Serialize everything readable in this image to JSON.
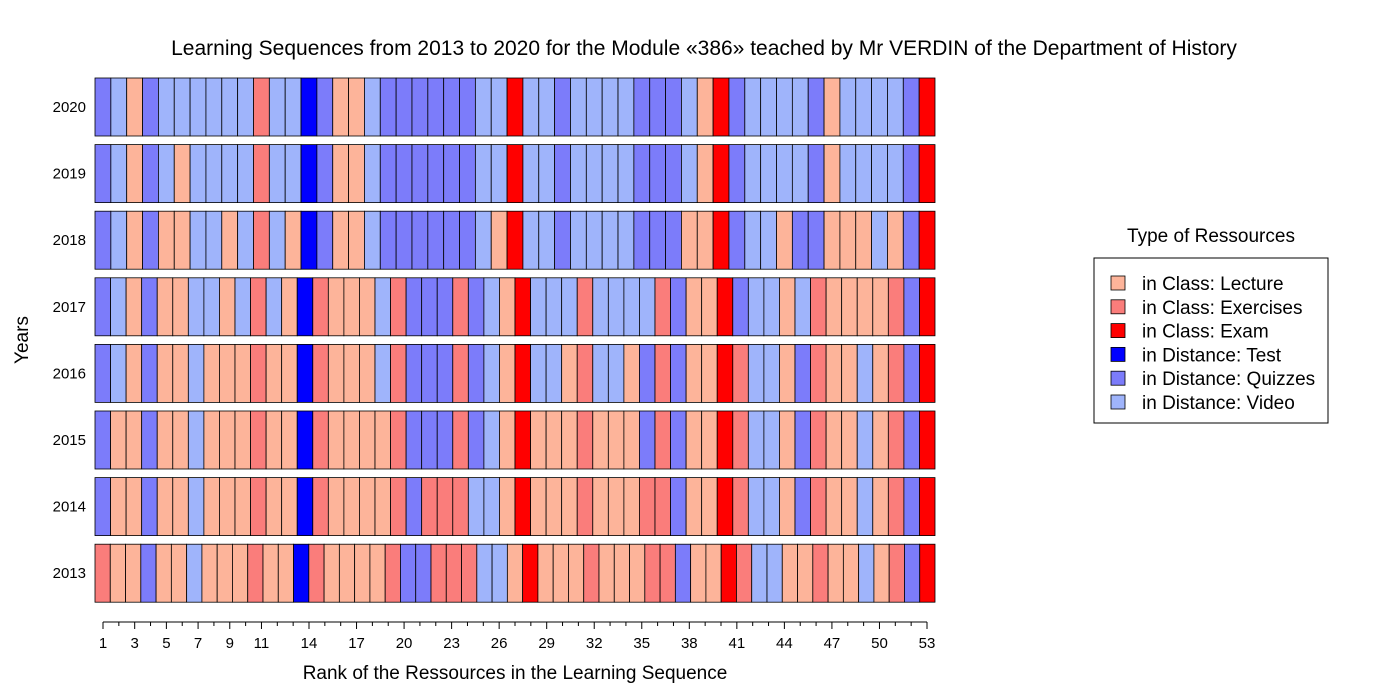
{
  "chart_data": {
    "type": "heatmap",
    "title": "Learning Sequences from 2013 to 2020 for the Module «386» teached by Mr VERDIN of the Department of History",
    "xlabel": "Rank of the Ressources in the Learning Sequence",
    "ylabel": "Years",
    "x_ticks": [
      1,
      3,
      5,
      7,
      9,
      11,
      14,
      17,
      20,
      23,
      26,
      29,
      32,
      35,
      38,
      41,
      44,
      47,
      50,
      53
    ],
    "x_range": [
      1,
      53
    ],
    "years": [
      "2020",
      "2019",
      "2018",
      "2017",
      "2016",
      "2015",
      "2014",
      "2013"
    ],
    "legend": {
      "title": "Type of Ressources",
      "position": "right",
      "items": [
        {
          "code": "L",
          "label": "in Class: Lecture",
          "color": "#FDB49A"
        },
        {
          "code": "X",
          "label": "in Class: Exercises",
          "color": "#FA7D7B"
        },
        {
          "code": "E",
          "label": "in Class: Exam",
          "color": "#FF0000"
        },
        {
          "code": "T",
          "label": "in Distance: Test",
          "color": "#0000FF"
        },
        {
          "code": "Q",
          "label": "in Distance: Quizzes",
          "color": "#7C7CFA"
        },
        {
          "code": "V",
          "label": "in Distance: Video",
          "color": "#9FB4FB"
        }
      ]
    },
    "sequences": {
      "2020": "QVLQVVVVVVXVVTQLLVQQQQQQVVEVVQVVVVQQQVLEQVVVVQLVVVVQE",
      "2019": "QVLQVLVVVVXVVTQLLVQQQQQQVVEVVQVVVVQQQVLEQVVVVQLVVVVQE",
      "2018": "QVLQLLVVLVXVLTQLLVQQQQQQVLEVVQVVVVQQQLLEQVVLQQLLLVLQE",
      "2017": "QVLQLLVVLVXVLTXLLLVXQQQXQVLEVVVXVVVVXQLLEQVVLVXLLLLXQE",
      "2016": "QVLQLLVLLLXLLTXLLLVXQQQXQVLEVVLXVVLQXQLLEXVVLQXLLVLXQE",
      "2015": "QLLQLLVLLLXLLTXLLLLXQQQXQVLELLLXLLLQXQLLEXVVLQXLLVLXQE",
      "2014": "QLLQLLVLLLXLLTXLLLLXQXXXVVLELLLXLLLXXQLLEXVVLQXLLVLXQE",
      "2013": "XLLQLLVLLLXLLTXLLLLXQQXXXVVLELLLXLLLXXQLLEXVVLLXLLVLXQE"
    }
  }
}
